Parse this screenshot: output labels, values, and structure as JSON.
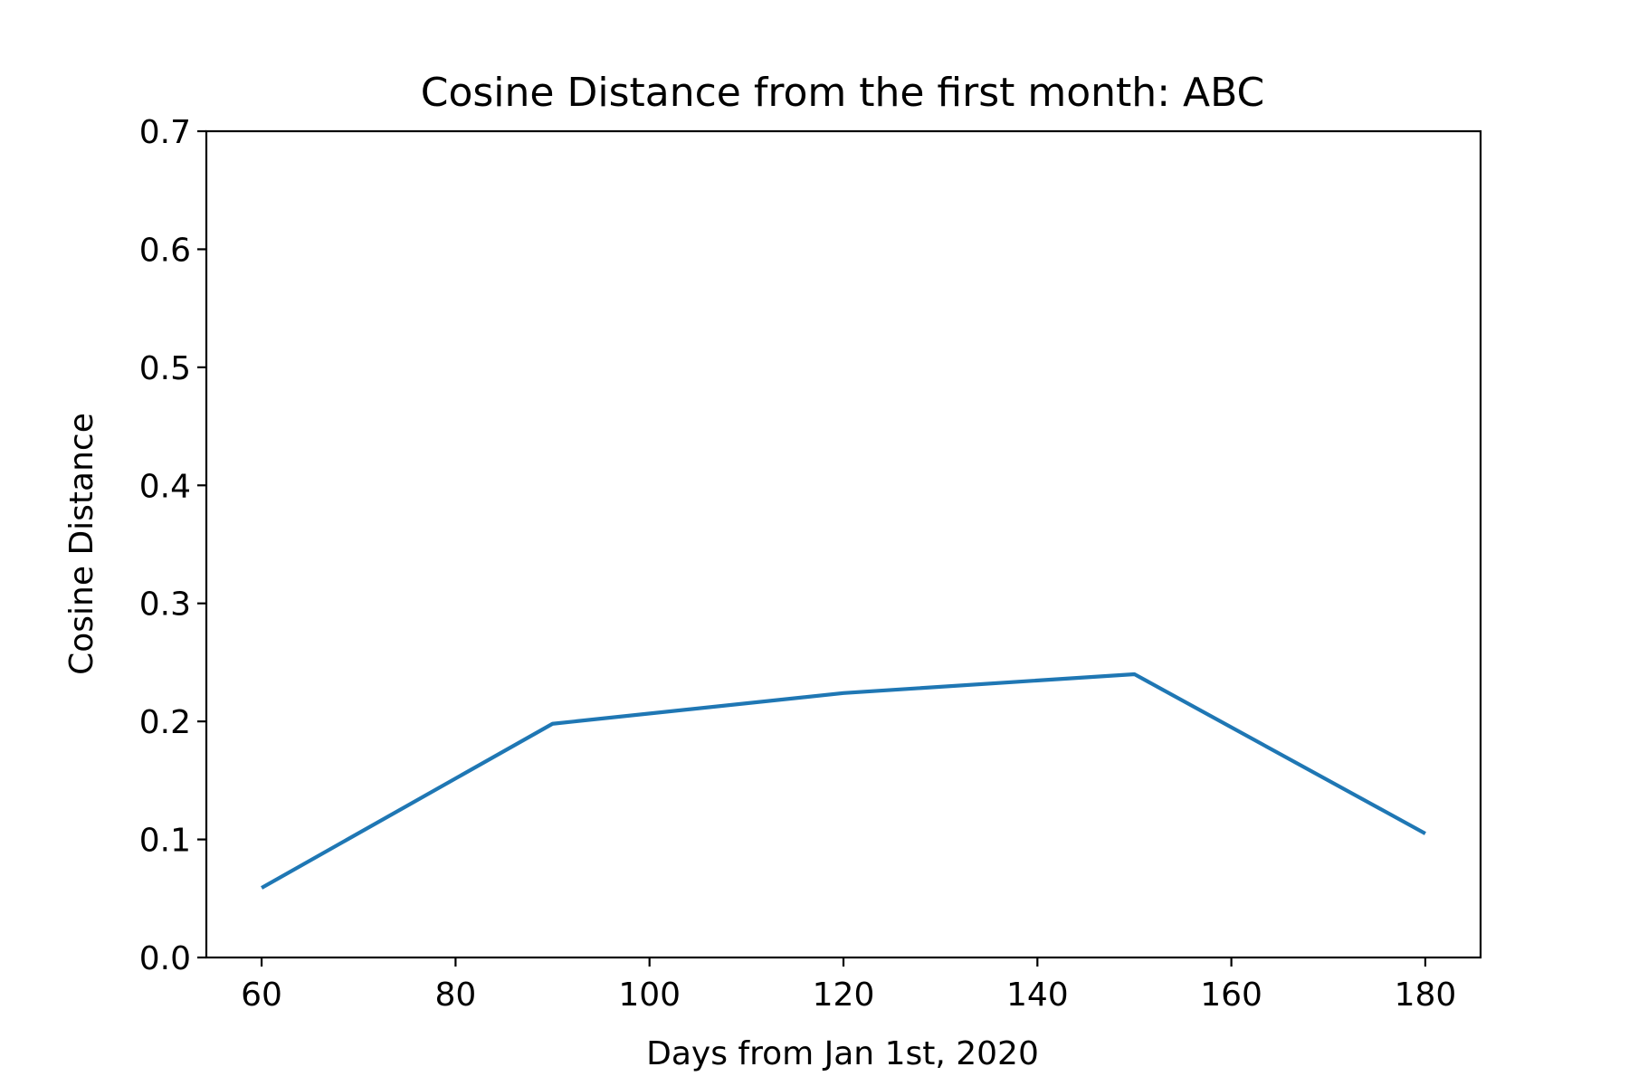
{
  "chart_data": {
    "type": "line",
    "title": "Cosine Distance from the first month: ABC",
    "xlabel": "Days from Jan 1st, 2020",
    "ylabel": "Cosine Distance",
    "xlim": [
      54.3,
      185.7
    ],
    "ylim": [
      0.0,
      0.7
    ],
    "xticks": [
      60,
      80,
      100,
      120,
      140,
      160,
      180
    ],
    "yticks": [
      0.0,
      0.1,
      0.2,
      0.3,
      0.4,
      0.5,
      0.6,
      0.7
    ],
    "xtick_labels": [
      "60",
      "80",
      "100",
      "120",
      "140",
      "160",
      "180"
    ],
    "ytick_labels": [
      "0.0",
      "0.1",
      "0.2",
      "0.3",
      "0.4",
      "0.5",
      "0.6",
      "0.7"
    ],
    "grid": false,
    "series": [
      {
        "color": "#1f77b4",
        "x": [
          60,
          90,
          120,
          150,
          180
        ],
        "y": [
          0.059,
          0.198,
          0.224,
          0.24,
          0.105
        ]
      }
    ]
  }
}
